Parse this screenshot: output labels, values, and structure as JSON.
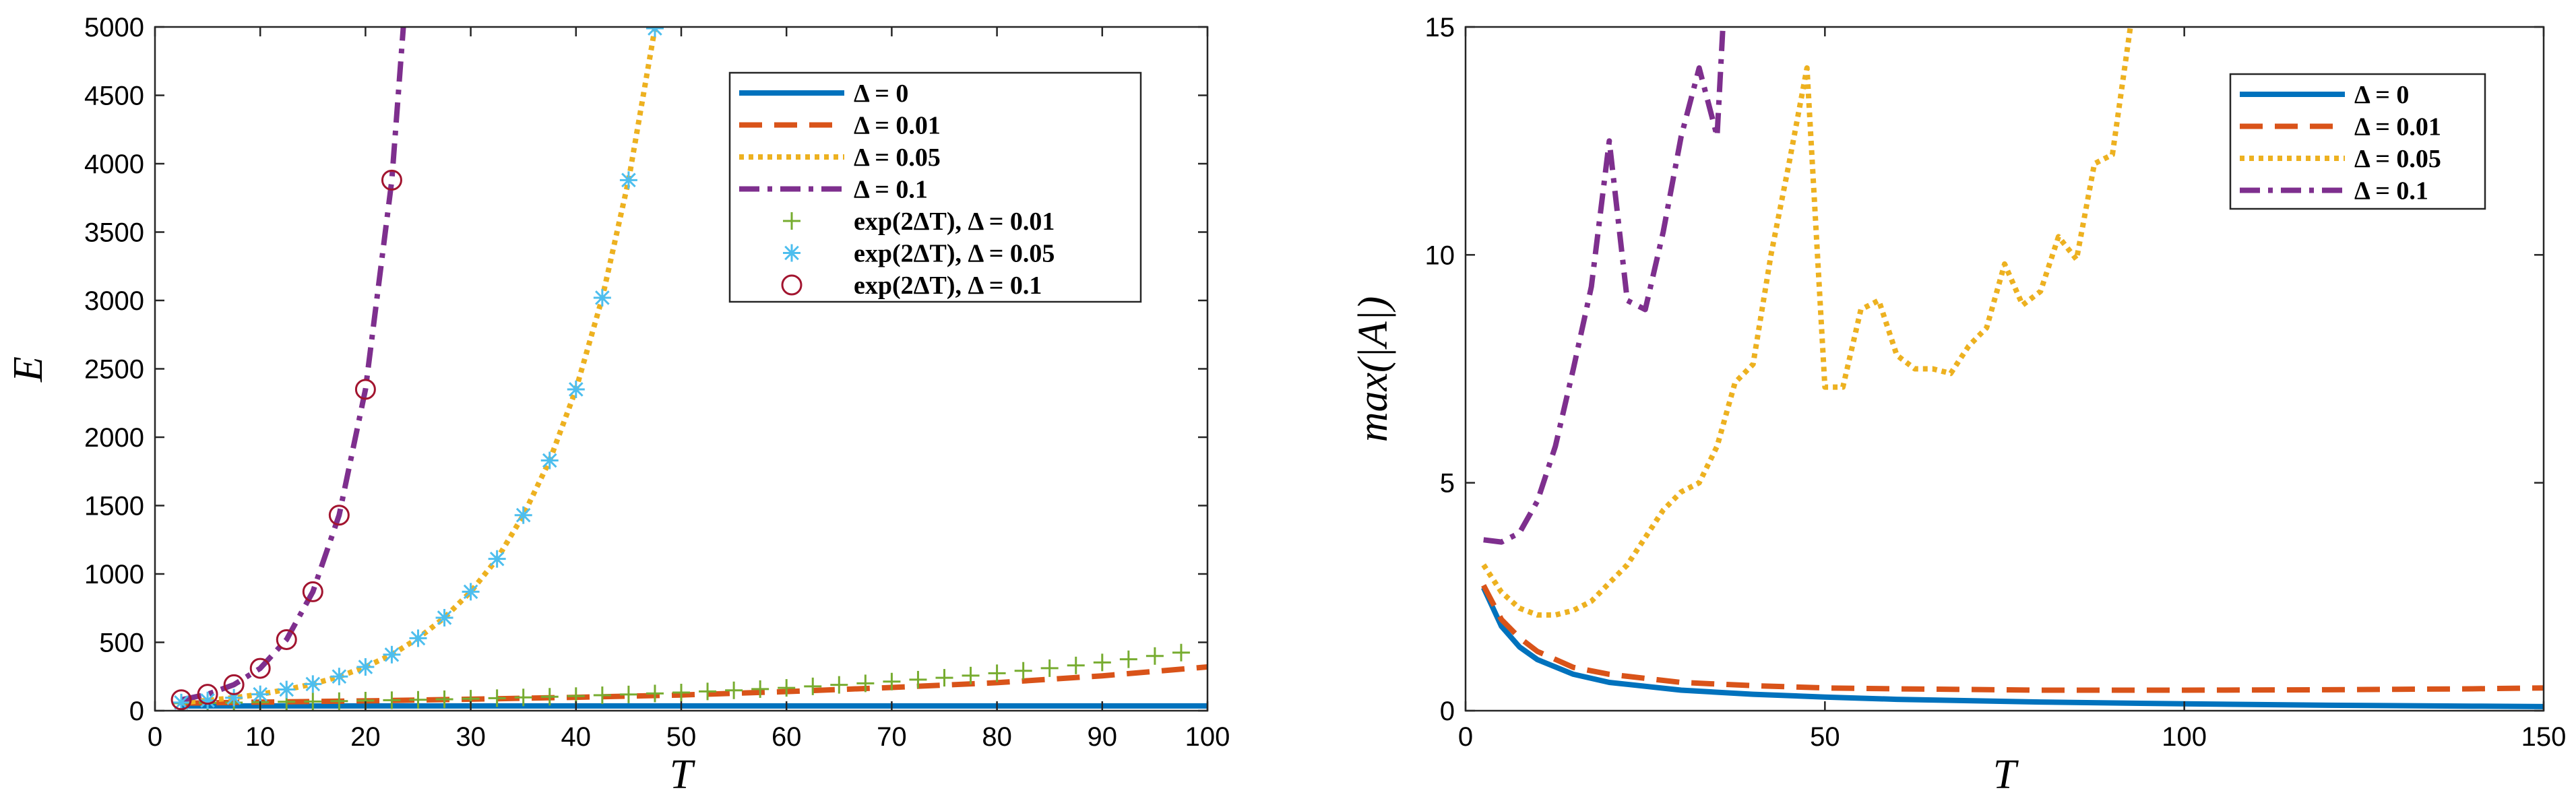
{
  "chart_data": [
    {
      "type": "line",
      "xlabel": "T",
      "ylabel": "E",
      "xlim": [
        0,
        100
      ],
      "ylim": [
        0,
        5000
      ],
      "xticks": [
        0,
        10,
        20,
        30,
        40,
        50,
        60,
        70,
        80,
        90,
        100
      ],
      "yticks": [
        0,
        500,
        1000,
        1500,
        2000,
        2500,
        3000,
        3500,
        4000,
        4500,
        5000
      ],
      "legend_position": "top-right",
      "series": [
        {
          "name": "Δ = 0",
          "style": "solid",
          "color": "#0072BD",
          "x": [
            2.5,
            10,
            20,
            40,
            60,
            80,
            100
          ],
          "y": [
            35,
            35,
            35,
            35,
            35,
            35,
            35
          ]
        },
        {
          "name": "Δ = 0.01",
          "style": "dashed",
          "color": "#D95319",
          "x": [
            2.5,
            10,
            20,
            30,
            40,
            50,
            60,
            70,
            80,
            90,
            100
          ],
          "y": [
            55,
            63,
            72,
            84,
            98,
            115,
            140,
            170,
            205,
            255,
            320
          ]
        },
        {
          "name": "Δ = 0.05",
          "style": "dotted",
          "color": "#EDB120",
          "x": [
            2.5,
            5,
            7.5,
            10,
            12.5,
            15,
            17.5,
            20,
            22.5,
            25,
            27.5,
            30,
            32.5,
            35,
            37.5,
            40,
            42.5,
            45,
            47.5
          ],
          "y": [
            60,
            75,
            95,
            120,
            155,
            195,
            250,
            320,
            410,
            530,
            680,
            870,
            1110,
            1430,
            1830,
            2350,
            3020,
            3880,
            4990
          ]
        },
        {
          "name": "Δ = 0.1",
          "style": "dashdot",
          "color": "#7E2F8E",
          "x": [
            2.5,
            5,
            7.5,
            10,
            12.5,
            15,
            17.5,
            20,
            22.5,
            23.6
          ],
          "y": [
            80,
            120,
            190,
            310,
            520,
            870,
            1430,
            2350,
            3880,
            5000
          ]
        },
        {
          "name": "exp(2ΔT), Δ = 0.01",
          "style": "marker-plus",
          "color": "#77AC30",
          "x": [
            2.5,
            5,
            7.5,
            10,
            12.5,
            15,
            17.5,
            20,
            22.5,
            25,
            27.5,
            30,
            32.5,
            35,
            37.5,
            40,
            42.5,
            45,
            47.5,
            50,
            52.5,
            55,
            57.5,
            60,
            62.5,
            65,
            67.5,
            70,
            72.5,
            75,
            77.5,
            80,
            82.5,
            85,
            87.5,
            90,
            92.5,
            95,
            97.5
          ],
          "y": [
            55,
            57,
            59,
            62,
            65,
            67,
            70,
            74,
            77,
            80,
            84,
            88,
            92,
            97,
            102,
            107,
            113,
            119,
            126,
            133,
            141,
            149,
            158,
            167,
            178,
            189,
            200,
            213,
            227,
            241,
            257,
            274,
            292,
            311,
            331,
            353,
            376,
            400,
            425
          ]
        },
        {
          "name": "exp(2ΔT), Δ = 0.05",
          "style": "marker-star",
          "color": "#4DBEEE",
          "x": [
            2.5,
            5,
            7.5,
            10,
            12.5,
            15,
            17.5,
            20,
            22.5,
            25,
            27.5,
            30,
            32.5,
            35,
            37.5,
            40,
            42.5,
            45,
            47.5
          ],
          "y": [
            60,
            75,
            95,
            120,
            155,
            195,
            250,
            320,
            410,
            530,
            680,
            870,
            1110,
            1430,
            1830,
            2350,
            3020,
            3880,
            4990
          ]
        },
        {
          "name": "exp(2ΔT), Δ = 0.1",
          "style": "marker-circle",
          "color": "#A2142F",
          "x": [
            2.5,
            5,
            7.5,
            10,
            12.5,
            15,
            17.5,
            20,
            22.5
          ],
          "y": [
            80,
            120,
            190,
            310,
            520,
            870,
            1430,
            2350,
            3880
          ]
        }
      ]
    },
    {
      "type": "line",
      "xlabel": "T",
      "ylabel": "max(|A|)",
      "xlim": [
        0,
        150
      ],
      "ylim": [
        0,
        15
      ],
      "xticks": [
        0,
        50,
        100,
        150
      ],
      "yticks": [
        0,
        5,
        10,
        15
      ],
      "legend_position": "top-right",
      "series": [
        {
          "name": "Δ = 0",
          "style": "solid",
          "color": "#0072BD",
          "x": [
            2.5,
            5,
            7.5,
            10,
            15,
            20,
            30,
            40,
            50,
            60,
            70,
            80,
            100,
            120,
            140,
            150
          ],
          "y": [
            2.7,
            1.85,
            1.4,
            1.12,
            0.8,
            0.62,
            0.45,
            0.36,
            0.3,
            0.25,
            0.22,
            0.19,
            0.15,
            0.12,
            0.1,
            0.09
          ]
        },
        {
          "name": "Δ = 0.01",
          "style": "dashed",
          "color": "#D95319",
          "x": [
            2.5,
            5,
            7.5,
            10,
            15,
            20,
            30,
            40,
            50,
            60,
            80,
            100,
            120,
            140,
            150
          ],
          "y": [
            2.75,
            2.0,
            1.6,
            1.3,
            0.95,
            0.8,
            0.62,
            0.55,
            0.5,
            0.48,
            0.45,
            0.45,
            0.46,
            0.48,
            0.5
          ]
        },
        {
          "name": "Δ = 0.05",
          "style": "dotted",
          "color": "#EDB120",
          "x": [
            2.5,
            5,
            7.5,
            10,
            12.5,
            15,
            17.5,
            20,
            22.5,
            25,
            27.5,
            30,
            32.5,
            35,
            37.5,
            40,
            42.5,
            45,
            47.5,
            50,
            52.5,
            55,
            57.5,
            60,
            62.5,
            65,
            67.5,
            70,
            72.5,
            75,
            77.5,
            80,
            82.5,
            85,
            87.5,
            90,
            92.5
          ],
          "y": [
            3.2,
            2.6,
            2.25,
            2.1,
            2.1,
            2.2,
            2.4,
            2.8,
            3.2,
            3.8,
            4.4,
            4.8,
            5.0,
            5.8,
            7.2,
            7.6,
            10.0,
            12.0,
            14.1,
            7.1,
            7.1,
            8.8,
            9.0,
            7.8,
            7.5,
            7.5,
            7.4,
            8.0,
            8.4,
            9.8,
            8.9,
            9.2,
            10.4,
            9.9,
            12.0,
            12.2,
            15.0
          ]
        },
        {
          "name": "Δ = 0.1",
          "style": "dashdot",
          "color": "#7E2F8E",
          "x": [
            2.5,
            5,
            7.5,
            10,
            12.5,
            15,
            17.5,
            20,
            22.5,
            25,
            27.5,
            30,
            32.5,
            35,
            35.8
          ],
          "y": [
            3.75,
            3.7,
            3.9,
            4.6,
            5.8,
            7.5,
            9.3,
            12.5,
            9.0,
            8.8,
            10.5,
            12.6,
            14.1,
            12.6,
            15.0
          ]
        }
      ]
    }
  ]
}
